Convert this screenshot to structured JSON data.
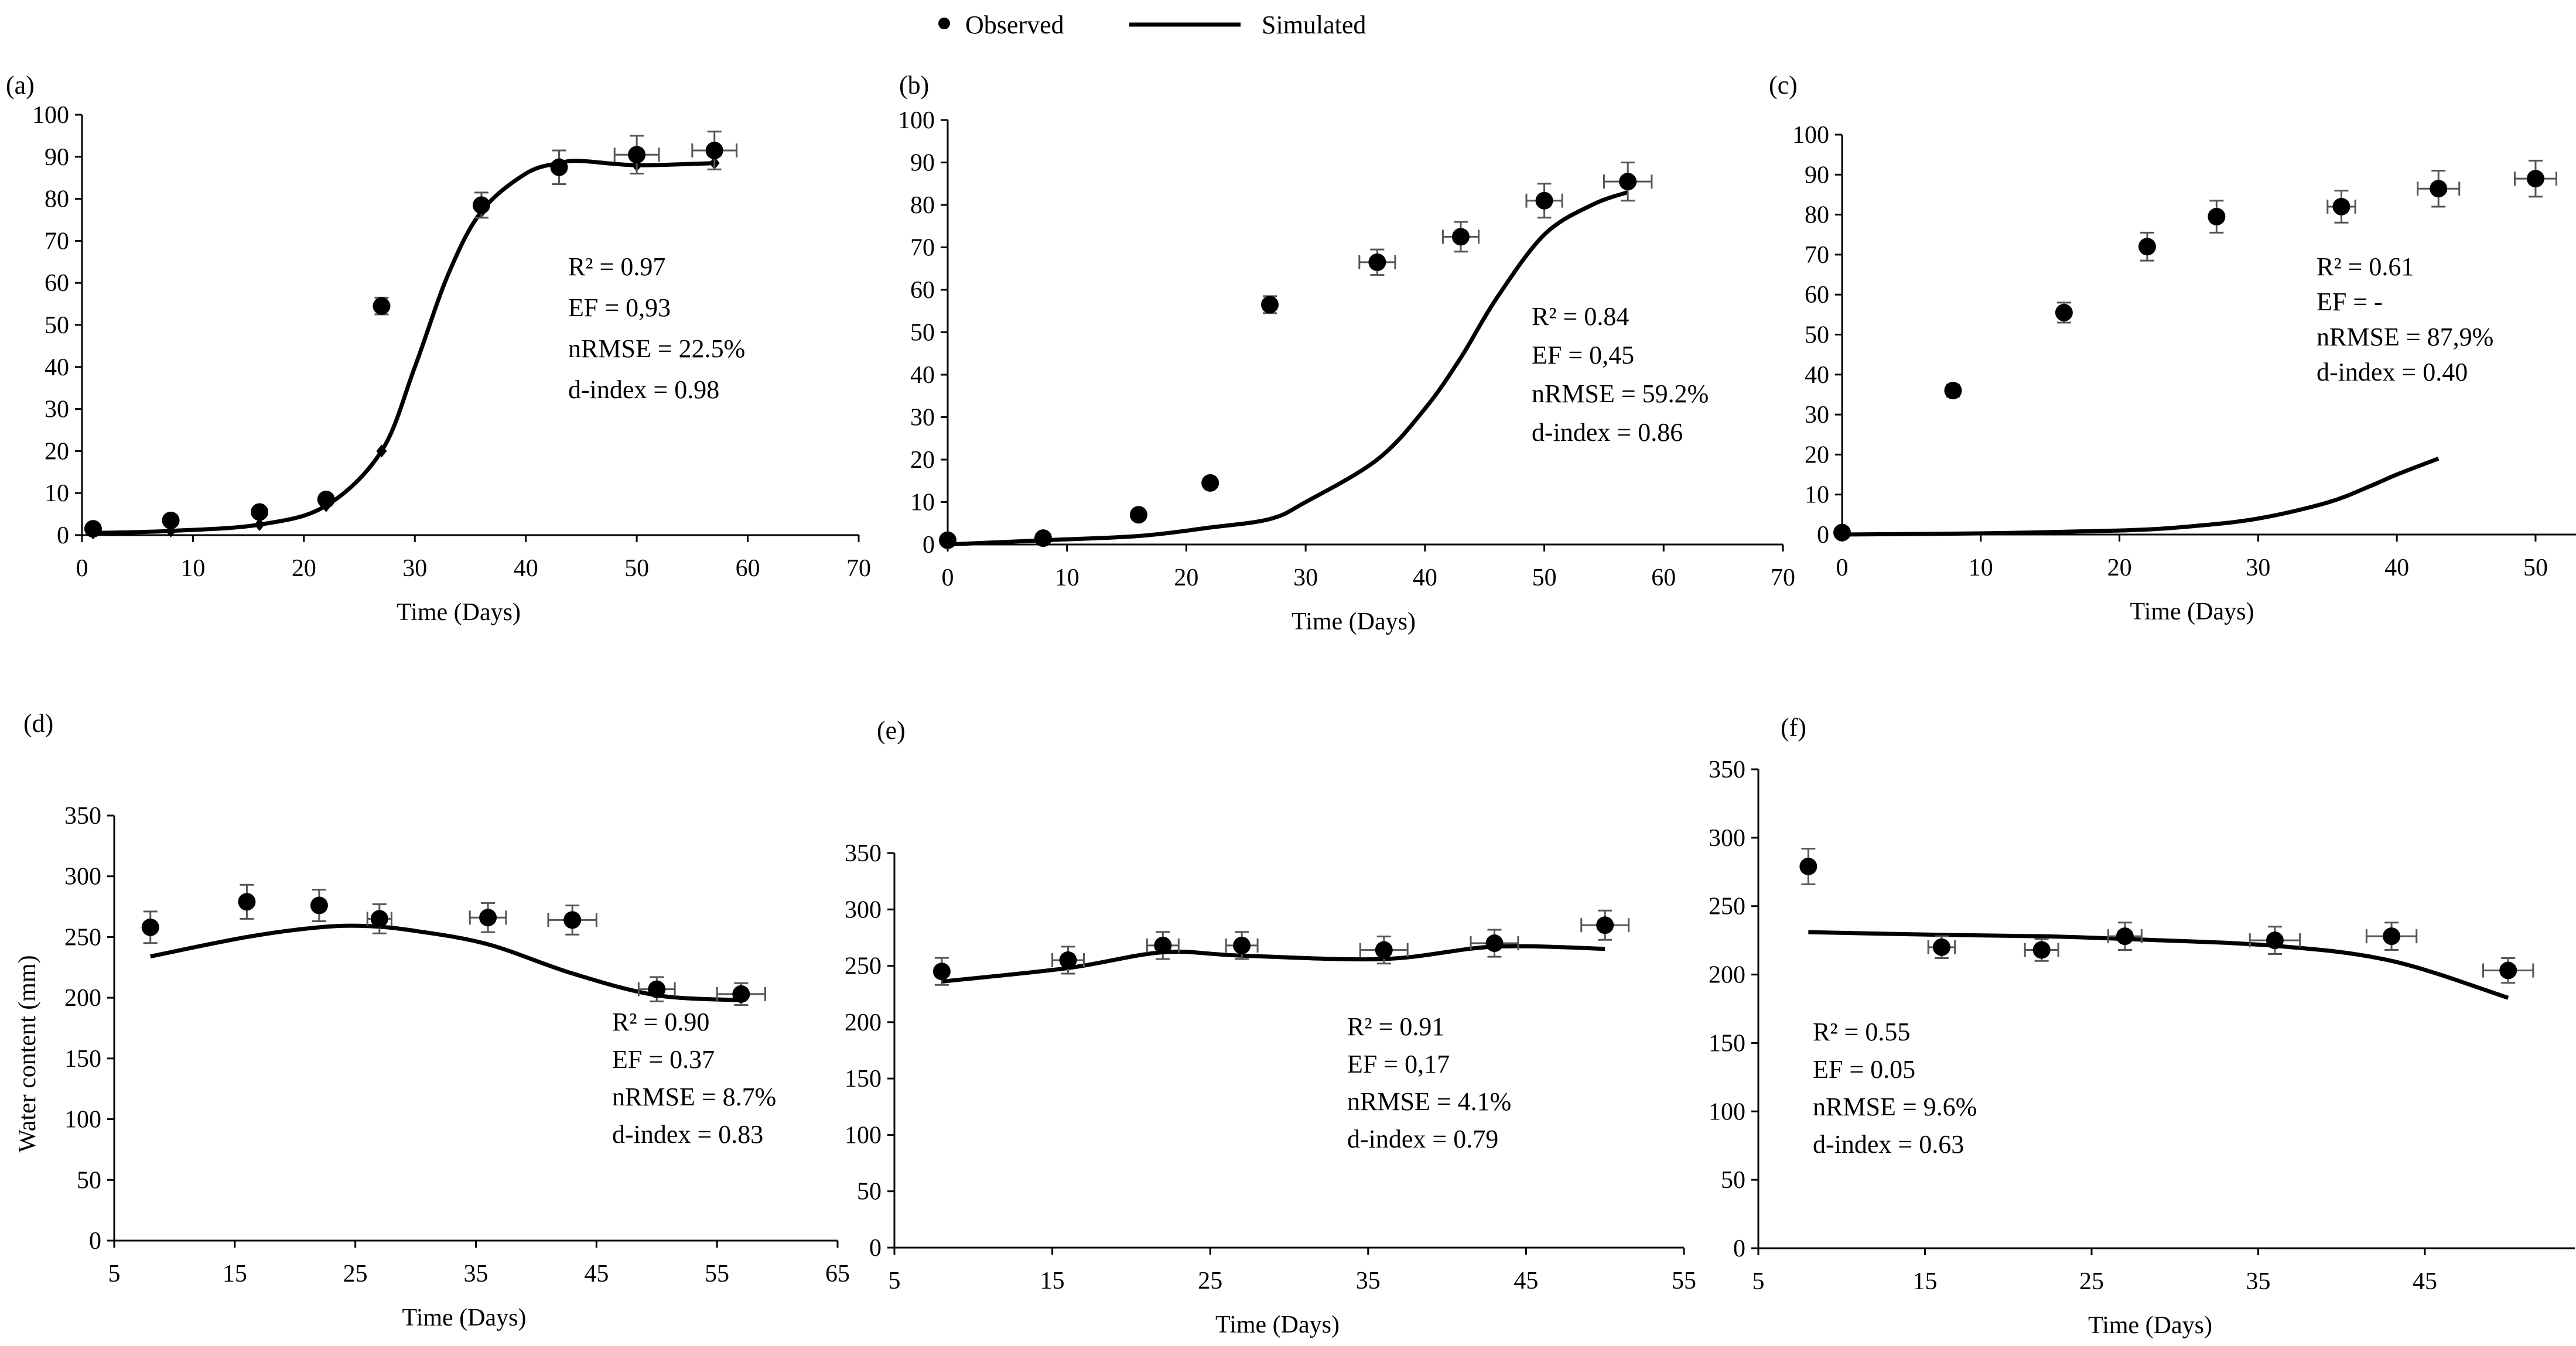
{
  "legend": {
    "observed_label": "Observed",
    "simulated_label": "Simulated",
    "observed_color": "#1a2a4a",
    "simulated_color": "#000000"
  },
  "y_axis_label": "Water content (mm)",
  "chart_data": [
    {
      "type": "scatter+line",
      "panel": "(a)",
      "xlabel": "Time (Days)",
      "ylabel": "",
      "xlim": [
        0,
        70
      ],
      "ylim": [
        0,
        100
      ],
      "xticks": [
        0,
        10,
        20,
        30,
        40,
        50,
        60,
        70
      ],
      "yticks": [
        0,
        10,
        20,
        30,
        40,
        50,
        60,
        70,
        80,
        90,
        100
      ],
      "observed": {
        "x": [
          1,
          8,
          16,
          22,
          27,
          36,
          43,
          50,
          57
        ],
        "y": [
          1.5,
          3.5,
          5.5,
          8.5,
          54.5,
          78.5,
          87.5,
          90.5,
          91.5
        ],
        "x_err": [
          0,
          0,
          0,
          0,
          0,
          0,
          0,
          2,
          2
        ],
        "y_err": [
          0,
          0,
          0,
          0,
          2,
          3,
          4,
          4.5,
          4.5
        ]
      },
      "simulated": {
        "x": [
          1,
          8,
          16,
          22,
          27,
          30,
          33,
          36,
          40,
          43,
          45,
          50,
          57
        ],
        "y": [
          0.5,
          1,
          2.5,
          7,
          20,
          40,
          62,
          77,
          86,
          88.5,
          89,
          88,
          88.5
        ],
        "markers_x": [
          1,
          8,
          16,
          22,
          27,
          36,
          43,
          50,
          57
        ]
      },
      "stats": [
        "R² = 0.97",
        "EF = 0,93",
        "nRMSE = 22.5%",
        "d-index = 0.98"
      ]
    },
    {
      "type": "scatter+line",
      "panel": "(b)",
      "xlabel": "Time (Days)",
      "ylabel": "",
      "xlim": [
        0,
        70
      ],
      "ylim": [
        0,
        100
      ],
      "xticks": [
        0,
        10,
        20,
        30,
        40,
        50,
        60,
        70
      ],
      "yticks": [
        0,
        10,
        20,
        30,
        40,
        50,
        60,
        70,
        80,
        90,
        100
      ],
      "observed": {
        "x": [
          0,
          8,
          16,
          22,
          27,
          36,
          43,
          50,
          57
        ],
        "y": [
          1,
          1.5,
          7,
          14.5,
          56.5,
          66.5,
          72.5,
          81,
          85.5
        ],
        "x_err": [
          0,
          0,
          0,
          0,
          0,
          1.5,
          1.5,
          1.5,
          2
        ],
        "y_err": [
          0,
          0,
          0,
          0,
          2,
          3,
          3.5,
          4,
          4.5
        ]
      },
      "simulated": {
        "x": [
          0,
          8,
          16,
          22,
          27,
          30,
          36,
          40,
          43,
          46,
          50,
          54,
          57
        ],
        "y": [
          0,
          1,
          2,
          4,
          6,
          10,
          20,
          32,
          44,
          58,
          73,
          80,
          83
        ],
        "markers_x": []
      },
      "stats": [
        "R² = 0.84",
        "EF = 0,45",
        "nRMSE = 59.2%",
        "d-index = 0.86"
      ]
    },
    {
      "type": "scatter+line",
      "panel": "(c)",
      "xlabel": "Time (Days)",
      "ylabel": "",
      "xlim": [
        0,
        53
      ],
      "ylim": [
        0,
        100
      ],
      "xticks": [
        0,
        10,
        20,
        30,
        40,
        50
      ],
      "yticks": [
        0,
        10,
        20,
        30,
        40,
        50,
        60,
        70,
        80,
        90,
        100
      ],
      "observed": {
        "x": [
          0,
          8,
          16,
          22,
          27,
          36,
          43,
          50
        ],
        "y": [
          0.5,
          36,
          55.5,
          72,
          79.5,
          82,
          86.5,
          89
        ],
        "x_err": [
          0,
          0,
          0,
          0,
          0,
          1,
          1.5,
          1.5
        ],
        "y_err": [
          0,
          1.5,
          2.5,
          3.5,
          4,
          4,
          4.5,
          4.5
        ]
      },
      "simulated": {
        "x": [
          0,
          10,
          20,
          25,
          30,
          35,
          38,
          40,
          43
        ],
        "y": [
          0,
          0.3,
          1,
          2,
          4,
          8,
          12,
          15,
          19
        ],
        "markers_x": []
      },
      "stats": [
        "R² = 0.61",
        "EF = -",
        "nRMSE = 87,9%",
        "d-index = 0.40"
      ]
    },
    {
      "type": "scatter+line",
      "panel": "(d)",
      "xlabel": "Time (Days)",
      "ylabel": "Water content (mm)",
      "xlim": [
        5,
        65
      ],
      "ylim": [
        0,
        350
      ],
      "xticks": [
        5,
        15,
        25,
        35,
        45,
        55,
        65
      ],
      "yticks": [
        0,
        50,
        100,
        150,
        200,
        250,
        300,
        350
      ],
      "observed": {
        "x": [
          8,
          16,
          22,
          27,
          36,
          43,
          50,
          57
        ],
        "y": [
          258,
          279,
          276,
          265,
          266,
          264,
          207,
          203
        ],
        "x_err": [
          0,
          0,
          0,
          1,
          1.5,
          2,
          1.5,
          2
        ],
        "y_err": [
          13,
          14,
          13,
          12,
          12,
          12,
          10,
          9
        ]
      },
      "simulated": {
        "x": [
          8,
          16,
          22,
          26,
          30,
          36,
          43,
          50,
          57
        ],
        "y": [
          234,
          250,
          258,
          259,
          255,
          244,
          220,
          202,
          198
        ],
        "markers_x": []
      },
      "stats": [
        "R² = 0.90",
        "EF = 0.37",
        "nRMSE = 8.7%",
        "d-index = 0.83"
      ]
    },
    {
      "type": "scatter+line",
      "panel": "(e)",
      "xlabel": "Time (Days)",
      "ylabel": "",
      "xlim": [
        5,
        55
      ],
      "ylim": [
        0,
        350
      ],
      "xticks": [
        5,
        15,
        25,
        35,
        45,
        55
      ],
      "yticks": [
        0,
        50,
        100,
        150,
        200,
        250,
        300,
        350
      ],
      "observed": {
        "x": [
          8,
          16,
          22,
          27,
          36,
          43,
          50
        ],
        "y": [
          245,
          255,
          268,
          268,
          264,
          270,
          286
        ],
        "x_err": [
          0,
          1,
          1,
          1,
          1.5,
          1.5,
          1.5
        ],
        "y_err": [
          12,
          12,
          12,
          12,
          12,
          12,
          13
        ]
      },
      "simulated": {
        "x": [
          8,
          16,
          22,
          27,
          36,
          43,
          50
        ],
        "y": [
          236,
          248,
          262,
          259,
          256,
          267,
          265
        ],
        "markers_x": []
      },
      "stats": [
        "R² = 0.91",
        "EF = 0,17",
        "nRMSE = 4.1%",
        "d-index = 0.79"
      ]
    },
    {
      "type": "scatter+line",
      "panel": "(f)",
      "xlabel": "Time (Days)",
      "ylabel": "",
      "xlim": [
        5,
        54
      ],
      "ylim": [
        0,
        350
      ],
      "xticks": [
        5,
        15,
        25,
        35,
        45
      ],
      "yticks": [
        0,
        50,
        100,
        150,
        200,
        250,
        300,
        350
      ],
      "observed": {
        "x": [
          8,
          16,
          22,
          27,
          36,
          43,
          50
        ],
        "y": [
          279,
          220,
          218,
          228,
          225,
          228,
          203
        ],
        "x_err": [
          0,
          0.8,
          1,
          1,
          1.5,
          1.5,
          1.5
        ],
        "y_err": [
          13,
          8,
          8,
          10,
          10,
          10,
          9
        ]
      },
      "simulated": {
        "x": [
          8,
          16,
          22,
          27,
          36,
          43,
          50
        ],
        "y": [
          231,
          229,
          228,
          226,
          221,
          210,
          183
        ],
        "markers_x": []
      },
      "stats": [
        "R² = 0.55",
        "EF =  0.05",
        "nRMSE = 9.6%",
        "d-index = 0.63"
      ]
    }
  ]
}
